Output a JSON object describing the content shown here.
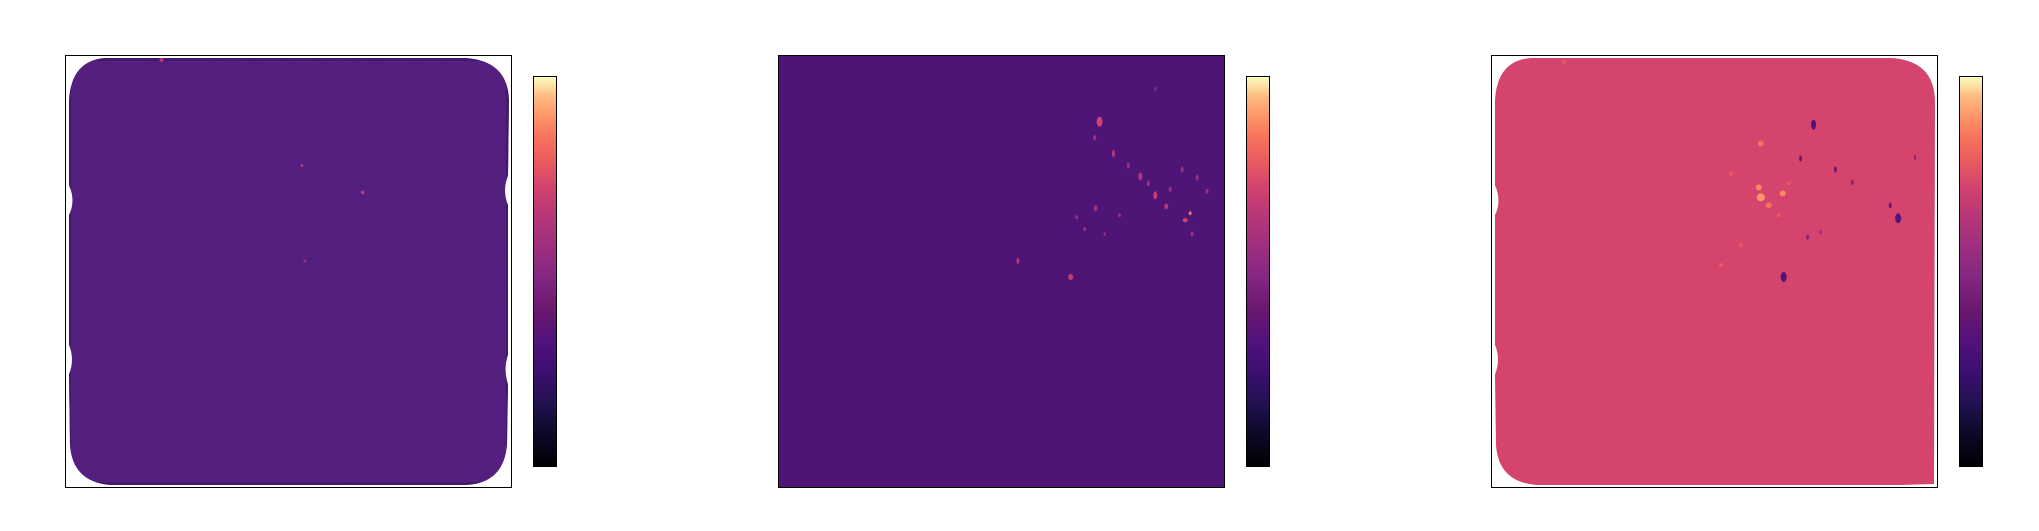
{
  "figure": {
    "panels": [
      {
        "id": "left",
        "background": "#4a1675",
        "texture": "noise",
        "corner_style": "rounded-ragged"
      },
      {
        "id": "middle",
        "background": "#4e1577",
        "texture": "flat",
        "corner_style": "square"
      },
      {
        "id": "right",
        "background": "#d4446c",
        "texture": "flat",
        "corner_style": "rounded-ragged"
      }
    ],
    "colormap": "magma",
    "colorbar_count": 3,
    "tick_labels_visible": false
  }
}
